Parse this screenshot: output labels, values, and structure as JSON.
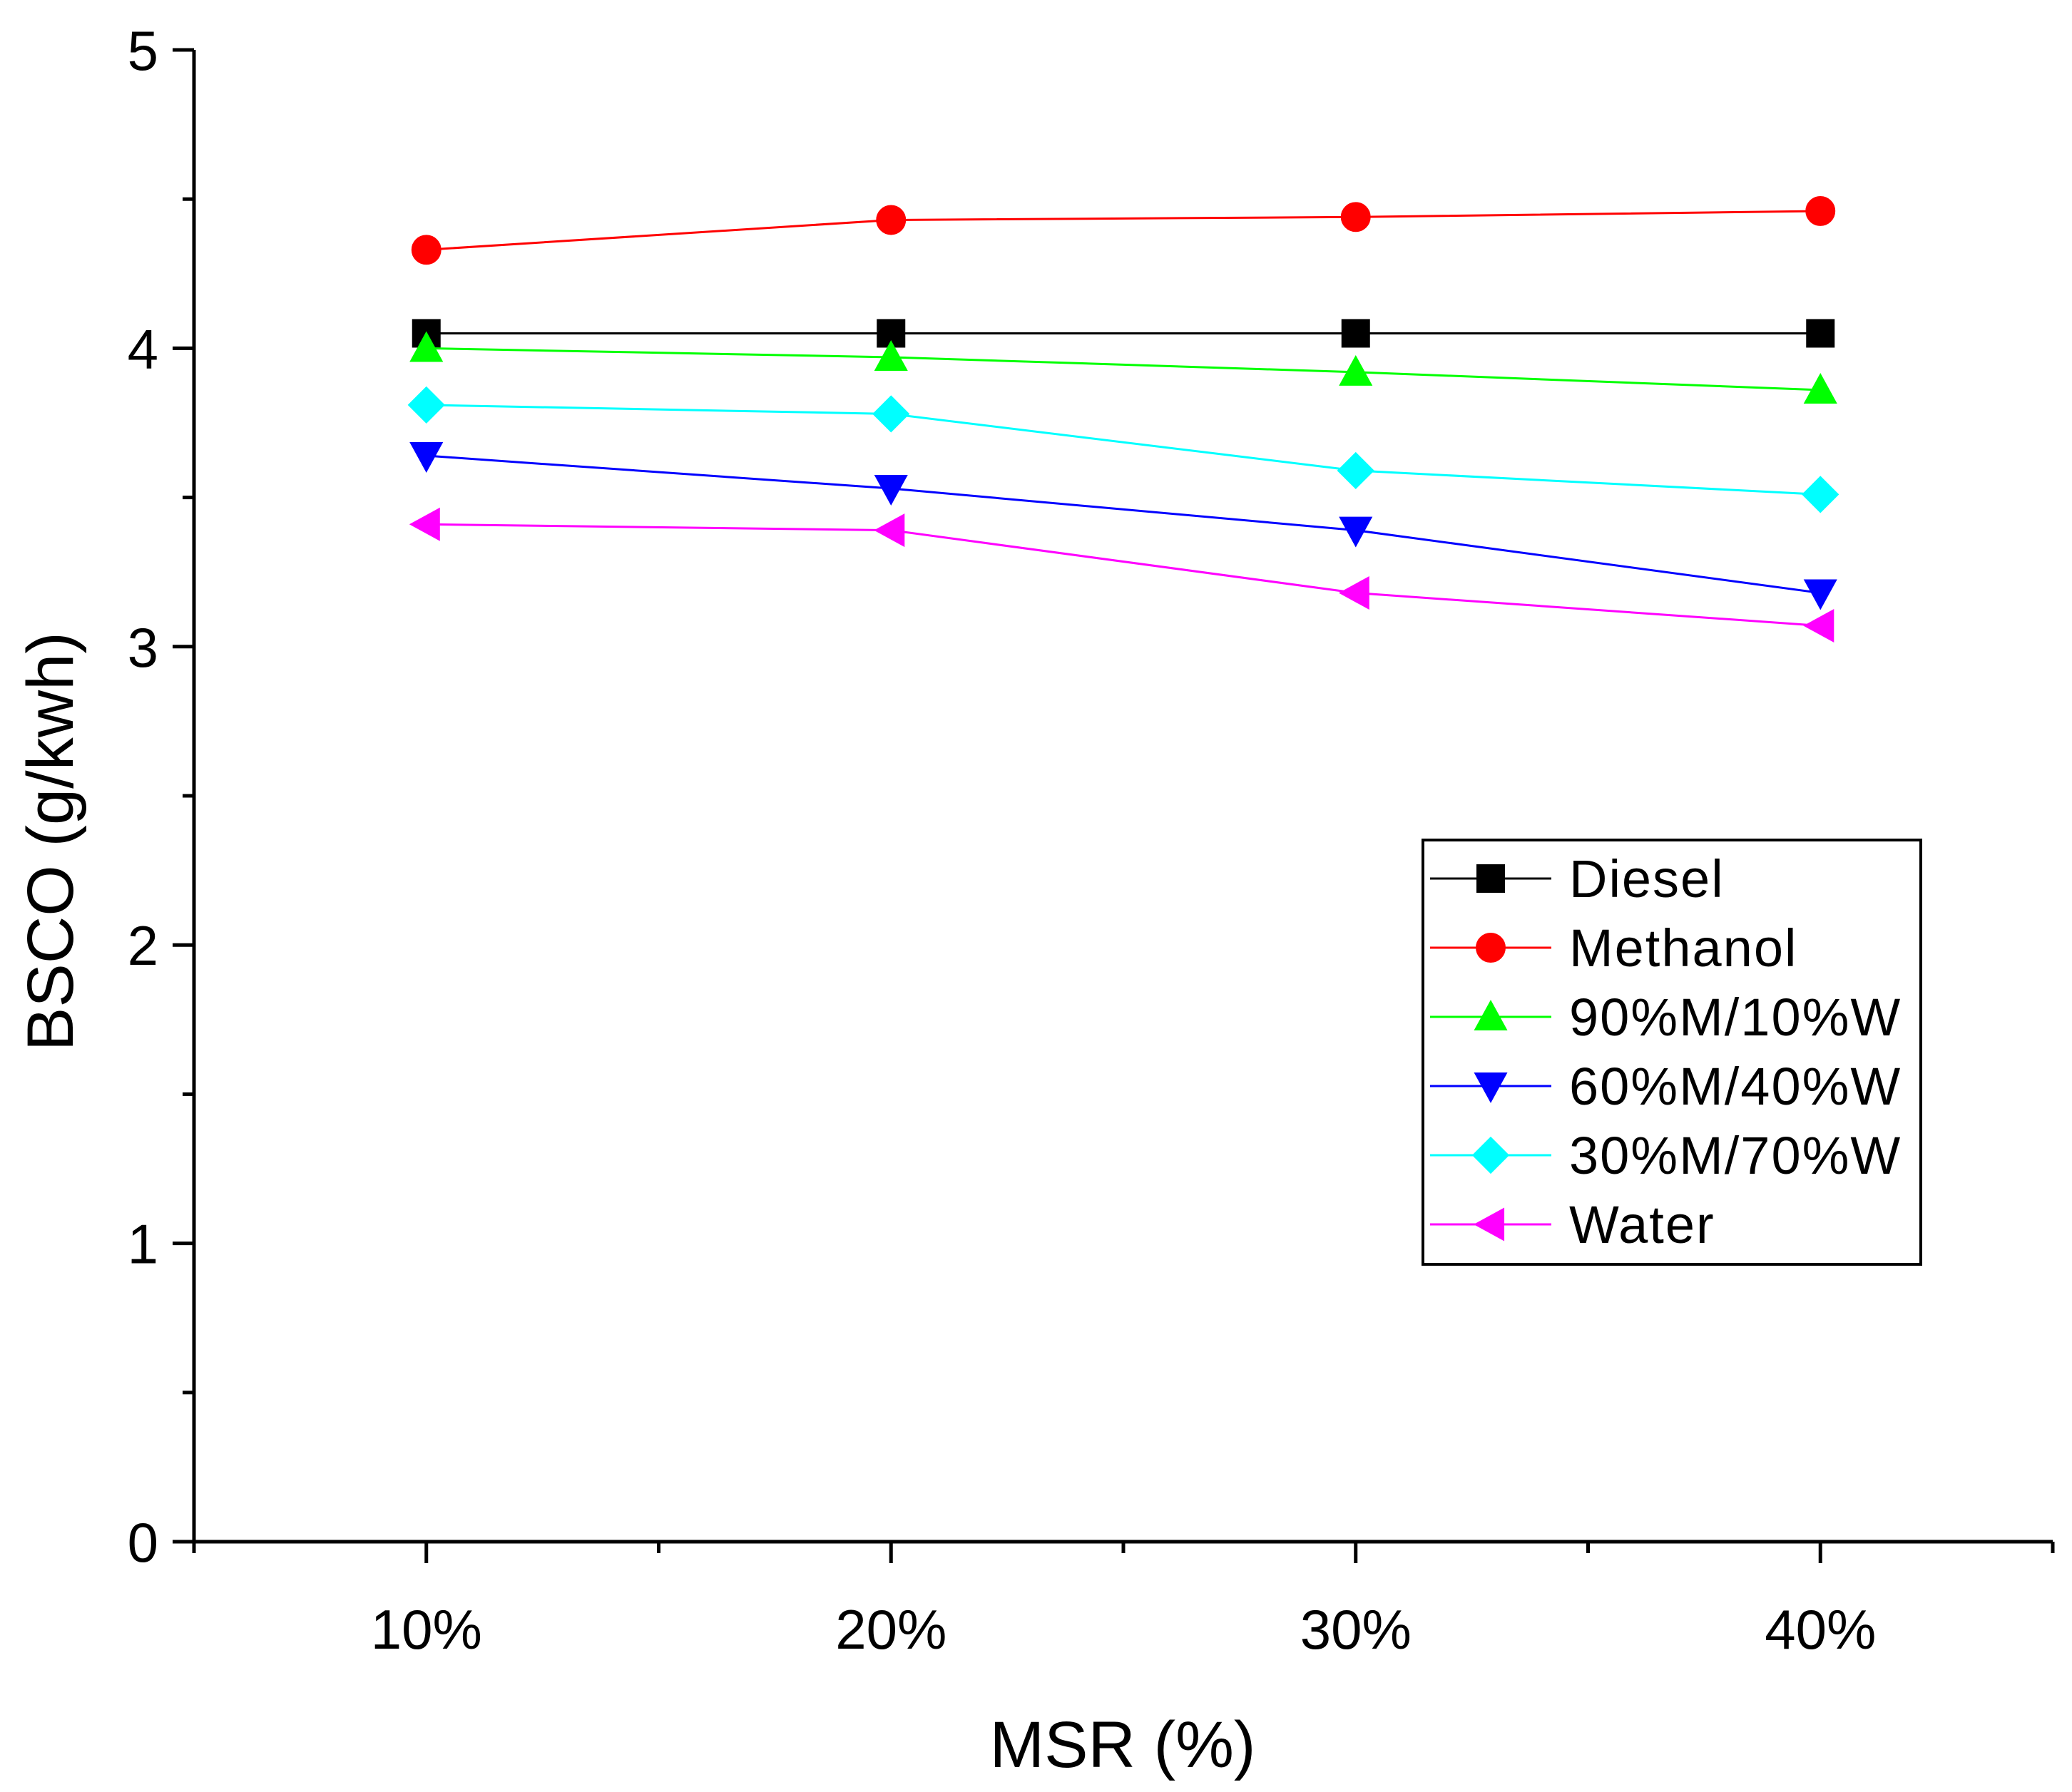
{
  "chart_data": {
    "type": "line",
    "title": "",
    "xlabel": "MSR (%)",
    "ylabel": "BSCO (g/kwh)",
    "categories": [
      "10%",
      "20%",
      "30%",
      "40%"
    ],
    "xlim": [
      5,
      45
    ],
    "xticks": [
      10,
      20,
      30,
      40
    ],
    "ylim": [
      0,
      5
    ],
    "yticks": [
      0,
      1,
      2,
      3,
      4,
      5
    ],
    "yminor_step": 0.5,
    "grid": false,
    "legend_position": "center-right",
    "series": [
      {
        "name": "Diesel",
        "color": "#000000",
        "marker": "square",
        "x": [
          10,
          20,
          30,
          40
        ],
        "values": [
          4.05,
          4.05,
          4.05,
          4.05
        ]
      },
      {
        "name": "Methanol",
        "color": "#ff0000",
        "marker": "circle",
        "x": [
          10,
          20,
          30,
          40
        ],
        "values": [
          4.33,
          4.43,
          4.44,
          4.46
        ]
      },
      {
        "name": "90%M/10%W",
        "color": "#00ff00",
        "marker": "triangle-up",
        "x": [
          10,
          20,
          30,
          40
        ],
        "values": [
          4.0,
          3.97,
          3.92,
          3.86
        ]
      },
      {
        "name": "60%M/40%W",
        "color": "#0000ff",
        "marker": "triangle-down",
        "x": [
          10,
          20,
          30,
          40
        ],
        "values": [
          3.64,
          3.53,
          3.39,
          3.18
        ]
      },
      {
        "name": "30%M/70%W",
        "color": "#00ffff",
        "marker": "diamond",
        "x": [
          10,
          20,
          30,
          40
        ],
        "values": [
          3.81,
          3.78,
          3.59,
          3.51
        ]
      },
      {
        "name": "Water",
        "color": "#ff00ff",
        "marker": "triangle-left",
        "x": [
          10,
          20,
          30,
          40
        ],
        "values": [
          3.41,
          3.39,
          3.18,
          3.07
        ]
      }
    ]
  }
}
